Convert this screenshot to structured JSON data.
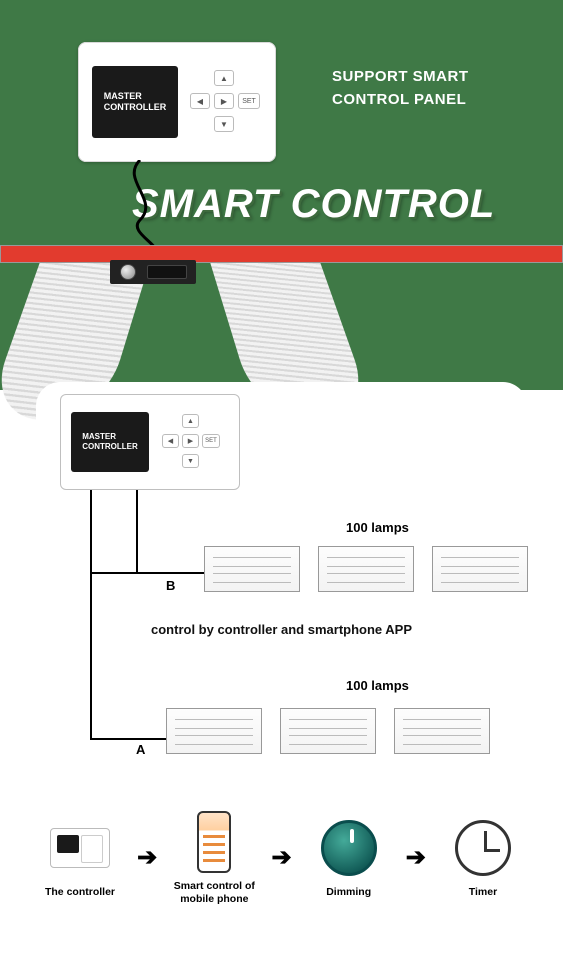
{
  "colors": {
    "green": "#3f7946",
    "red_bar": "#e23b2e",
    "white": "#ffffff",
    "black": "#000000"
  },
  "top": {
    "device_screen": "MASTER\nCONTROLLER",
    "dpad_set": "SET",
    "support_line1": "SUPPORT SMART",
    "support_line2": "CONTROL PANEL",
    "title": "SMART CONTROL"
  },
  "card": {
    "device_screen": "MASTER\nCONTROLLER",
    "dpad_set": "SET",
    "lamps_b": "100 lamps",
    "lamps_a": "100 lamps",
    "label_b": "B",
    "label_a": "A",
    "mid_text": "control by controller and smartphone APP",
    "lamp_count_per_chain": 3
  },
  "flow": {
    "items": [
      {
        "key": "controller",
        "label": "The controller"
      },
      {
        "key": "phone",
        "label": "Smart control of\nmobile phone"
      },
      {
        "key": "dimming",
        "label": "Dimming"
      },
      {
        "key": "timer",
        "label": "Timer"
      }
    ],
    "arrow": "➔"
  }
}
